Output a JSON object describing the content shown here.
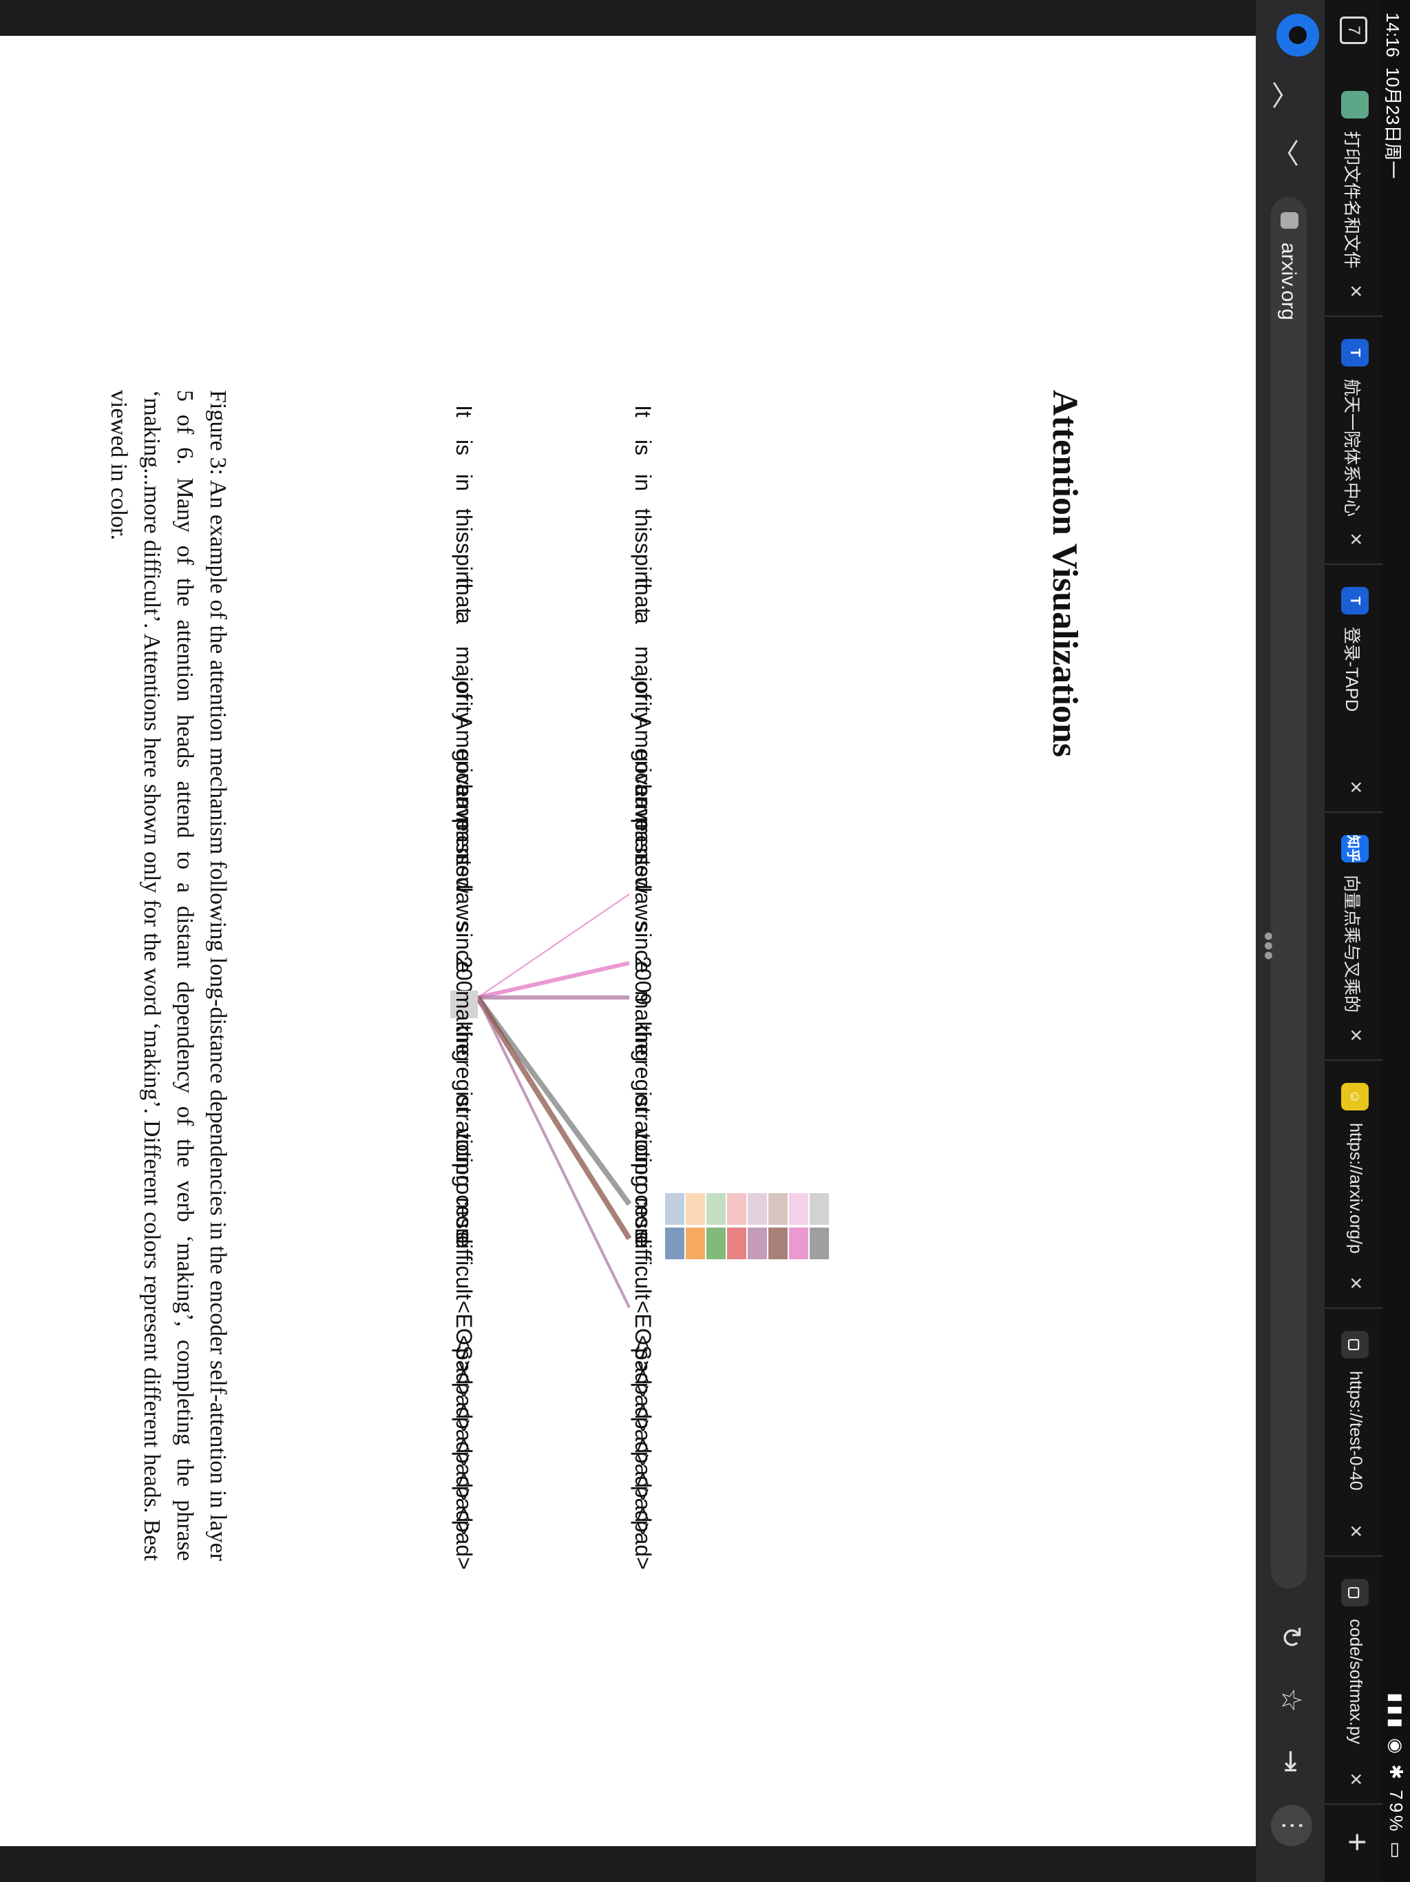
{
  "status_bar": {
    "time": "14:16",
    "date": "10月23日周一",
    "battery": "79%"
  },
  "tabs": [
    {
      "label": "打印文件名和文件",
      "favicon_color": "#5ea688",
      "favicon_text": "",
      "close": "×"
    },
    {
      "label": "航天一院体系中心",
      "favicon_color": "#1b5fd6",
      "favicon_text": "T",
      "close": "×"
    },
    {
      "label": "登录-TAPD",
      "favicon_color": "#1b5fd6",
      "favicon_text": "T",
      "close": "×"
    },
    {
      "label": "向量点乘与叉乘的",
      "favicon_color": "#1a6ff0",
      "favicon_text": "知乎",
      "close": "×"
    },
    {
      "label": "https://arxiv.org/p",
      "favicon_color": "#e8c51b",
      "favicon_text": "☺",
      "close": "×"
    },
    {
      "label": "https://test-0-40",
      "favicon_color": "#333",
      "favicon_text": "▢",
      "close": "×"
    },
    {
      "label": "code/softmax.py",
      "favicon_color": "#333",
      "favicon_text": "▢",
      "close": "×"
    }
  ],
  "tab_count": "7",
  "new_tab": "+",
  "toolbar": {
    "url": "arxiv.org"
  },
  "paper": {
    "title": "Attention Visualizations",
    "tokens": [
      "It",
      "is",
      "in",
      "this",
      "spirit",
      "that",
      "a",
      "majority",
      "of",
      "American",
      "governments",
      "have",
      "passed",
      "new",
      "laws",
      "since",
      "2009",
      "making",
      "the",
      "registration",
      "or",
      "voting",
      "process",
      "more",
      "difficult",
      ".",
      "<EOS>",
      "<pad>",
      "<pad>",
      "<pad>",
      "<pad>",
      "<pad>",
      "<pad>"
    ],
    "query_token": "making",
    "caption": "Figure 3: An example of the attention mechanism following long-distance dependencies in the encoder self-attention in layer 5 of 6. Many of the attention heads attend to a distant dependency of the verb ‘making’, completing the phrase ‘making...more difficult’. Attentions here shown only for the word ‘making’. Different colors represent different heads. Best viewed in color."
  },
  "colors": {
    "head_colors": [
      "#4e79a7",
      "#f28e2b",
      "#59a14f",
      "#e15759",
      "#b07aa1",
      "#8c564b",
      "#e377c2",
      "#7f7f7f"
    ]
  }
}
